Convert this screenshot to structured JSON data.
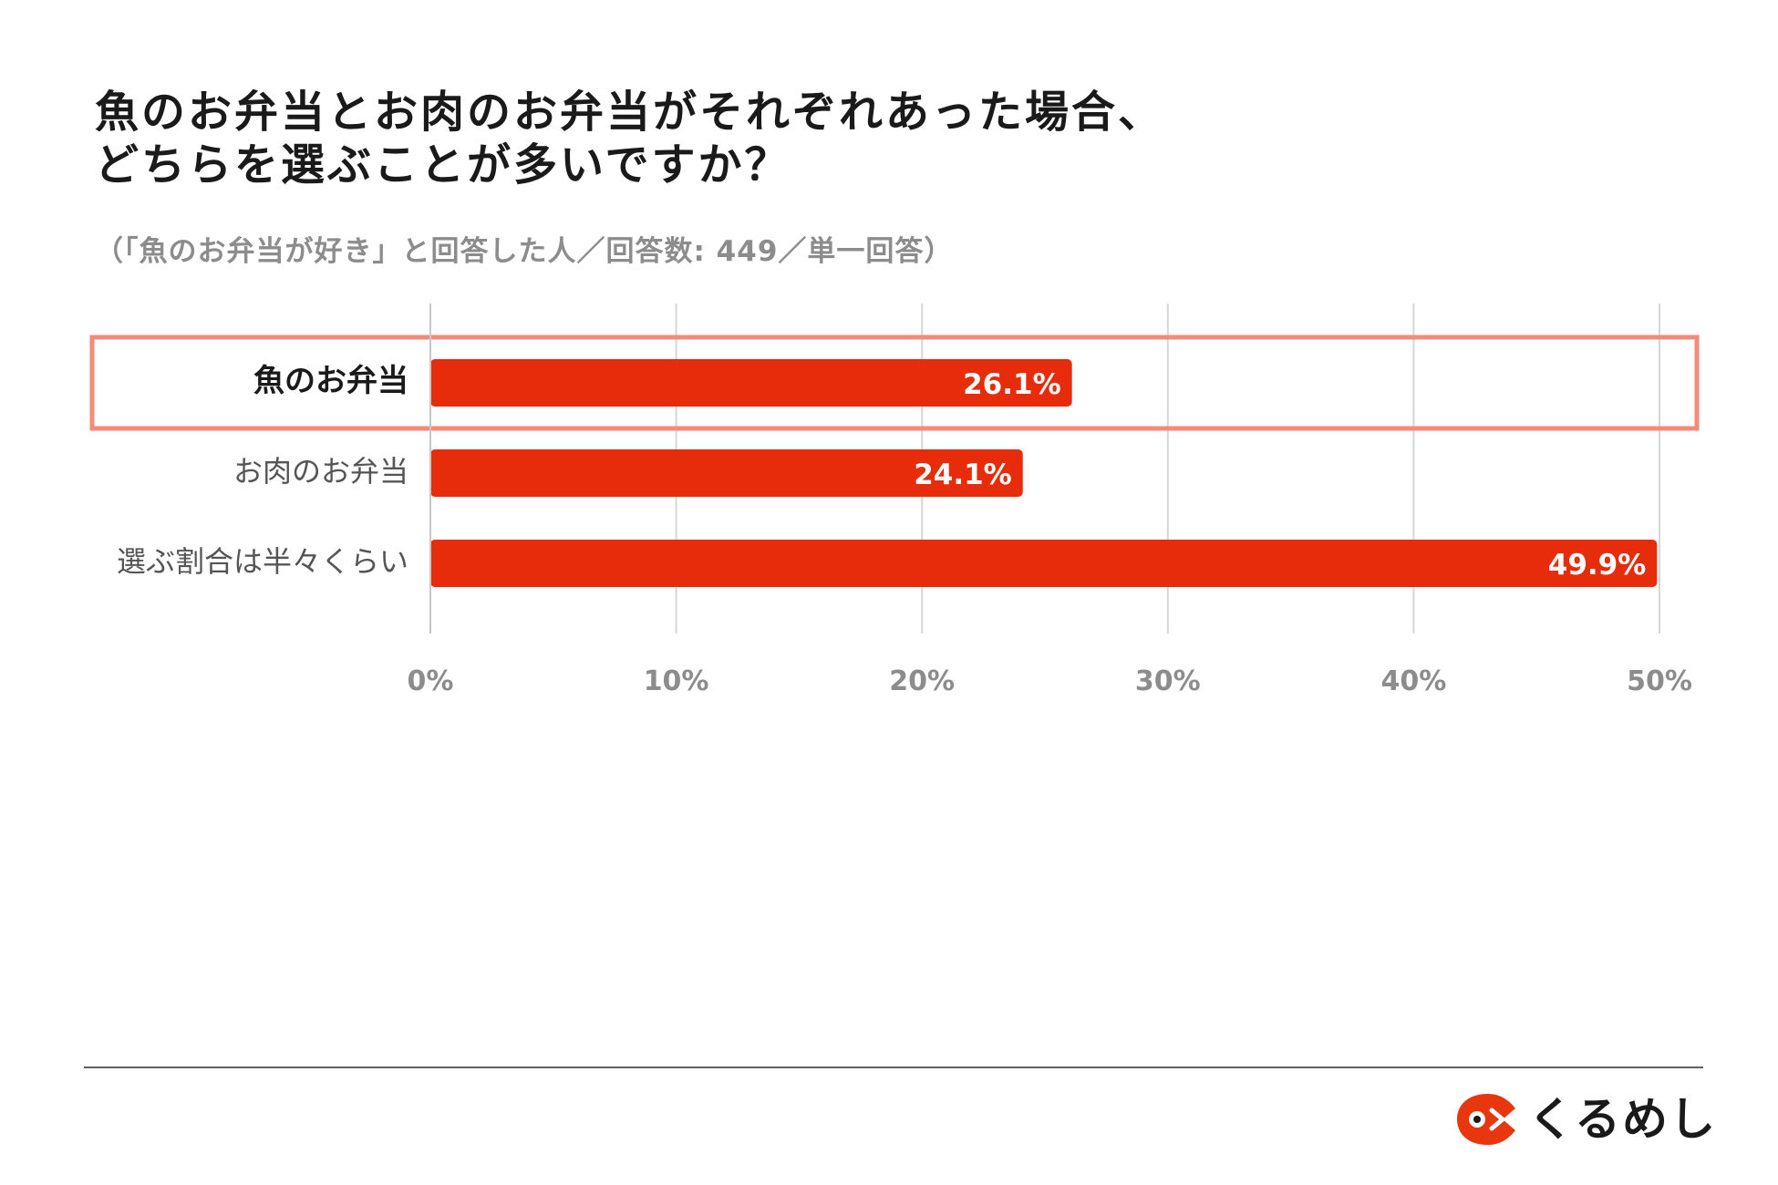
{
  "title_lines": [
    "魚のお弁当とお肉のお弁当がそれぞれあった場合、",
    "どちらを選ぶことが多いですか？"
  ],
  "subtitle": "（「魚のお弁当が好き」と回答した人／回答数: 449／単一回答）",
  "brand": {
    "name": "くるめし",
    "logo_icon": "kurumeshi-logo-icon",
    "logo_color": "#e8360f"
  },
  "chart_data": {
    "type": "bar",
    "orientation": "horizontal",
    "categories": [
      "魚のお弁当",
      "お肉のお弁当",
      "選ぶ割合は半々くらい"
    ],
    "values": [
      26.1,
      24.1,
      49.9
    ],
    "value_labels": [
      "26.1%",
      "24.1%",
      "49.9%"
    ],
    "highlighted_category": "魚のお弁当",
    "xlim": [
      0,
      50
    ],
    "x_ticks": [
      0,
      10,
      20,
      30,
      40,
      50
    ],
    "x_tick_labels": [
      "0%",
      "10%",
      "20%",
      "30%",
      "40%",
      "50%"
    ],
    "grid": true,
    "bar_color": "#e62c0a",
    "highlight_color": "#f48a7a"
  }
}
